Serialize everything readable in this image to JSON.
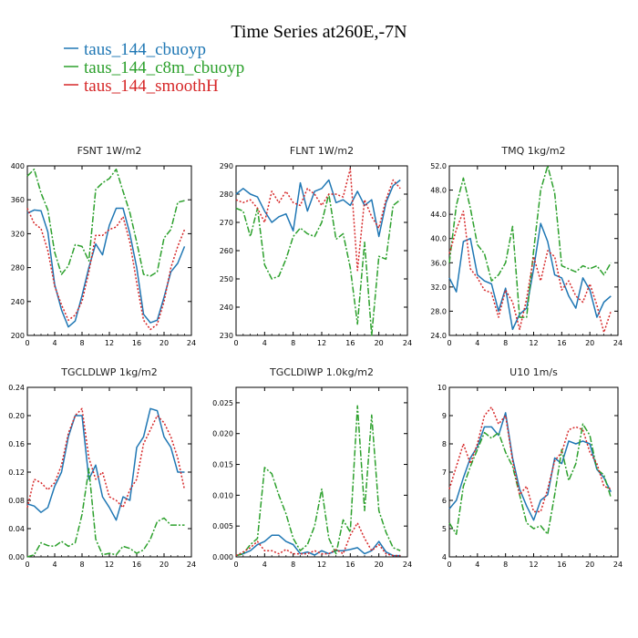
{
  "figure": {
    "title": "Time Series at260E,-7N",
    "legend": [
      {
        "name": "taus_144_cbuoyp",
        "color": "#1f77b4"
      },
      {
        "name": "taus_144_c8m_cbuoyp",
        "color": "#2ca02c"
      },
      {
        "name": "taus_144_smoothH",
        "color": "#d62728"
      }
    ]
  },
  "chart_data": [
    {
      "type": "line",
      "title": "FSNT   1W/m2",
      "xlim": [
        0,
        24
      ],
      "xticks": [
        0,
        4,
        8,
        12,
        16,
        20,
        24
      ],
      "xtick_labels": [
        "0",
        "4",
        "8",
        "12",
        "16",
        "20",
        "24"
      ],
      "ylim": [
        200,
        400
      ],
      "yticks": [
        200,
        240,
        280,
        320,
        360,
        400
      ],
      "ytick_labels": [
        "200",
        "240",
        "280",
        "320",
        "360",
        "400"
      ],
      "x": [
        0,
        1,
        2,
        3,
        4,
        5,
        6,
        7,
        8,
        9,
        10,
        11,
        12,
        13,
        14,
        15,
        16,
        17,
        18,
        19,
        20,
        21,
        22,
        23
      ],
      "series": [
        {
          "values": [
            344,
            348,
            347,
            322,
            260,
            230,
            210,
            217,
            247,
            280,
            308,
            295,
            330,
            350,
            350,
            320,
            280,
            225,
            215,
            218,
            245,
            275,
            285,
            305
          ]
        },
        {
          "values": [
            388,
            396,
            368,
            348,
            298,
            272,
            282,
            307,
            305,
            288,
            372,
            380,
            385,
            396,
            370,
            345,
            310,
            272,
            270,
            275,
            315,
            325,
            357,
            359
          ]
        },
        {
          "values": [
            350,
            332,
            326,
            300,
            258,
            236,
            218,
            224,
            240,
            275,
            318,
            318,
            325,
            328,
            340,
            310,
            262,
            218,
            207,
            213,
            240,
            280,
            305,
            325
          ]
        }
      ]
    },
    {
      "type": "line",
      "title": "FLNT   1W/m2",
      "xlim": [
        0,
        24
      ],
      "xticks": [
        0,
        4,
        8,
        12,
        16,
        20,
        24
      ],
      "xtick_labels": [
        "0",
        "4",
        "8",
        "12",
        "16",
        "20",
        "24"
      ],
      "ylim": [
        230,
        290
      ],
      "yticks": [
        230,
        240,
        250,
        260,
        270,
        280,
        290
      ],
      "ytick_labels": [
        "230",
        "240",
        "250",
        "260",
        "270",
        "280",
        "290"
      ],
      "x": [
        0,
        1,
        2,
        3,
        4,
        5,
        6,
        7,
        8,
        9,
        10,
        11,
        12,
        13,
        14,
        15,
        16,
        17,
        18,
        19,
        20,
        21,
        22,
        23
      ],
      "series": [
        {
          "values": [
            280,
            282,
            280,
            279,
            274,
            270,
            272,
            273,
            267,
            284,
            274,
            281,
            282,
            285,
            277,
            278,
            276,
            281,
            276,
            278,
            265,
            277,
            283,
            285
          ]
        },
        {
          "values": [
            275,
            274,
            265,
            275,
            255,
            250,
            251,
            257,
            265,
            268,
            266,
            265,
            270,
            280,
            264,
            266,
            254,
            234,
            263,
            230,
            258,
            257,
            276,
            278
          ]
        },
        {
          "values": [
            278,
            277,
            278,
            275,
            270,
            281,
            277,
            281,
            277,
            276,
            282,
            280,
            276,
            280,
            280,
            279,
            289,
            253,
            278,
            272,
            268,
            278,
            285,
            282
          ]
        }
      ]
    },
    {
      "type": "line",
      "title": "TMQ   1kg/m2",
      "xlim": [
        0,
        24
      ],
      "xticks": [
        0,
        4,
        8,
        12,
        16,
        20,
        24
      ],
      "xtick_labels": [
        "0",
        "4",
        "8",
        "12",
        "16",
        "20",
        "24"
      ],
      "ylim": [
        24,
        52
      ],
      "yticks": [
        24,
        28,
        32,
        36,
        40,
        44,
        48,
        52
      ],
      "ytick_labels": [
        "24.0",
        "28.0",
        "32.0",
        "36.0",
        "40.0",
        "44.0",
        "48.0",
        "52.0"
      ],
      "x": [
        0,
        1,
        2,
        3,
        4,
        5,
        6,
        7,
        8,
        9,
        10,
        11,
        12,
        13,
        14,
        15,
        16,
        17,
        18,
        19,
        20,
        21,
        22,
        23
      ],
      "series": [
        {
          "values": [
            33.5,
            31.2,
            39.5,
            40.0,
            34.0,
            33.0,
            32.5,
            28.0,
            31.8,
            25.0,
            27.5,
            28.5,
            35.0,
            42.5,
            39.5,
            34.0,
            33.5,
            30.5,
            28.5,
            33.5,
            31.5,
            27.0,
            29.5,
            30.5
          ]
        },
        {
          "values": [
            36.0,
            45.5,
            50.0,
            45.0,
            39.0,
            37.5,
            33.0,
            34.0,
            36.0,
            42.0,
            27.0,
            27.0,
            38.0,
            48.0,
            52.0,
            47.5,
            35.5,
            35.0,
            34.5,
            35.5,
            35.0,
            35.5,
            34.0,
            36.0
          ]
        },
        {
          "values": [
            37.5,
            41.5,
            44.5,
            35.0,
            33.5,
            31.5,
            31.0,
            27.0,
            31.5,
            29.5,
            25.0,
            30.0,
            37.0,
            33.0,
            38.0,
            37.0,
            31.5,
            33.0,
            30.5,
            29.5,
            32.5,
            29.0,
            24.5,
            28.0
          ]
        }
      ]
    },
    {
      "type": "line",
      "title": "TGCLDLWP   1kg/m2",
      "xlim": [
        0,
        24
      ],
      "xticks": [
        0,
        4,
        8,
        12,
        16,
        20,
        24
      ],
      "xtick_labels": [
        "0",
        "4",
        "8",
        "12",
        "16",
        "20",
        "24"
      ],
      "ylim": [
        0,
        0.24
      ],
      "yticks": [
        0,
        0.04,
        0.08,
        0.12,
        0.16,
        0.2,
        0.24
      ],
      "ytick_labels": [
        "0.00",
        "0.04",
        "0.08",
        "0.12",
        "0.16",
        "0.20",
        "0.24"
      ],
      "x": [
        0,
        1,
        2,
        3,
        4,
        5,
        6,
        7,
        8,
        9,
        10,
        11,
        12,
        13,
        14,
        15,
        16,
        17,
        18,
        19,
        20,
        21,
        22,
        23
      ],
      "series": [
        {
          "values": [
            0.075,
            0.072,
            0.063,
            0.07,
            0.1,
            0.12,
            0.17,
            0.2,
            0.2,
            0.11,
            0.13,
            0.085,
            0.07,
            0.052,
            0.085,
            0.08,
            0.155,
            0.17,
            0.21,
            0.207,
            0.17,
            0.155,
            0.12,
            0.12
          ]
        },
        {
          "values": [
            0.0,
            0.003,
            0.02,
            0.016,
            0.015,
            0.022,
            0.015,
            0.02,
            0.06,
            0.125,
            0.025,
            0.003,
            0.005,
            0.003,
            0.015,
            0.012,
            0.005,
            0.01,
            0.025,
            0.05,
            0.055,
            0.045,
            0.045,
            0.045
          ]
        },
        {
          "values": [
            0.07,
            0.11,
            0.105,
            0.095,
            0.105,
            0.13,
            0.175,
            0.2,
            0.21,
            0.14,
            0.11,
            0.12,
            0.085,
            0.08,
            0.07,
            0.095,
            0.11,
            0.16,
            0.18,
            0.2,
            0.19,
            0.17,
            0.14,
            0.095
          ]
        }
      ]
    },
    {
      "type": "line",
      "title": "TGCLDIWP   1.0kg/m2",
      "xlim": [
        0,
        24
      ],
      "xticks": [
        0,
        4,
        8,
        12,
        16,
        20,
        24
      ],
      "xtick_labels": [
        "0",
        "4",
        "8",
        "12",
        "16",
        "20",
        "24"
      ],
      "ylim": [
        0,
        0.0275
      ],
      "yticks": [
        0,
        0.005,
        0.01,
        0.015,
        0.02,
        0.025
      ],
      "ytick_labels": [
        "0.000",
        "0.005",
        "0.010",
        "0.015",
        "0.020",
        "0.025"
      ],
      "x": [
        0,
        1,
        2,
        3,
        4,
        5,
        6,
        7,
        8,
        9,
        10,
        11,
        12,
        13,
        14,
        15,
        16,
        17,
        18,
        19,
        20,
        21,
        22,
        23
      ],
      "series": [
        {
          "values": [
            0.0002,
            0.0005,
            0.001,
            0.002,
            0.0025,
            0.0035,
            0.0035,
            0.0025,
            0.002,
            0.0005,
            0.0008,
            0.0003,
            0.001,
            0.0005,
            0.001,
            0.001,
            0.0012,
            0.0015,
            0.0005,
            0.001,
            0.0025,
            0.0008,
            0.0002,
            0.0002
          ]
        },
        {
          "values": [
            0.0002,
            0.0005,
            0.002,
            0.003,
            0.0145,
            0.0135,
            0.01,
            0.007,
            0.003,
            0.001,
            0.002,
            0.005,
            0.011,
            0.003,
            0.0005,
            0.006,
            0.004,
            0.0245,
            0.0075,
            0.023,
            0.0075,
            0.004,
            0.0015,
            0.001
          ]
        },
        {
          "values": [
            0.0002,
            0.0008,
            0.0015,
            0.0025,
            0.001,
            0.001,
            0.0005,
            0.0012,
            0.0005,
            0.0005,
            0.0005,
            0.001,
            0.0005,
            0.0005,
            0.0012,
            0.0005,
            0.0035,
            0.0055,
            0.003,
            0.001,
            0.002,
            0.0005,
            0.0002,
            0.0002
          ]
        }
      ]
    },
    {
      "type": "line",
      "title": "U10   1m/s",
      "xlim": [
        0,
        24
      ],
      "xticks": [
        0,
        4,
        8,
        12,
        16,
        20,
        24
      ],
      "xtick_labels": [
        "0",
        "4",
        "8",
        "12",
        "16",
        "20",
        "24"
      ],
      "ylim": [
        4,
        10
      ],
      "yticks": [
        4,
        5,
        6,
        7,
        8,
        9,
        10
      ],
      "ytick_labels": [
        "4",
        "5",
        "6",
        "7",
        "8",
        "9",
        "10"
      ],
      "x": [
        0,
        1,
        2,
        3,
        4,
        5,
        6,
        7,
        8,
        9,
        10,
        11,
        12,
        13,
        14,
        15,
        16,
        17,
        18,
        19,
        20,
        21,
        22,
        23
      ],
      "series": [
        {
          "values": [
            5.7,
            6.0,
            6.8,
            7.5,
            7.9,
            8.6,
            8.6,
            8.3,
            9.1,
            7.5,
            6.4,
            5.8,
            5.3,
            6.0,
            6.2,
            7.5,
            7.3,
            8.1,
            8.0,
            8.1,
            8.0,
            7.1,
            6.8,
            6.3
          ]
        },
        {
          "values": [
            5.2,
            4.8,
            6.5,
            7.2,
            7.8,
            8.4,
            8.2,
            8.4,
            7.7,
            7.2,
            6.2,
            5.2,
            5.0,
            5.1,
            4.8,
            6.2,
            7.8,
            6.7,
            7.3,
            8.7,
            8.3,
            7.1,
            6.9,
            6.1
          ]
        },
        {
          "values": [
            6.4,
            7.2,
            8.0,
            7.3,
            8.0,
            9.0,
            9.3,
            8.7,
            9.0,
            7.4,
            6.2,
            6.5,
            5.6,
            5.6,
            6.4,
            7.4,
            7.7,
            8.5,
            8.6,
            8.5,
            7.7,
            7.3,
            6.5,
            6.4
          ]
        }
      ]
    }
  ]
}
